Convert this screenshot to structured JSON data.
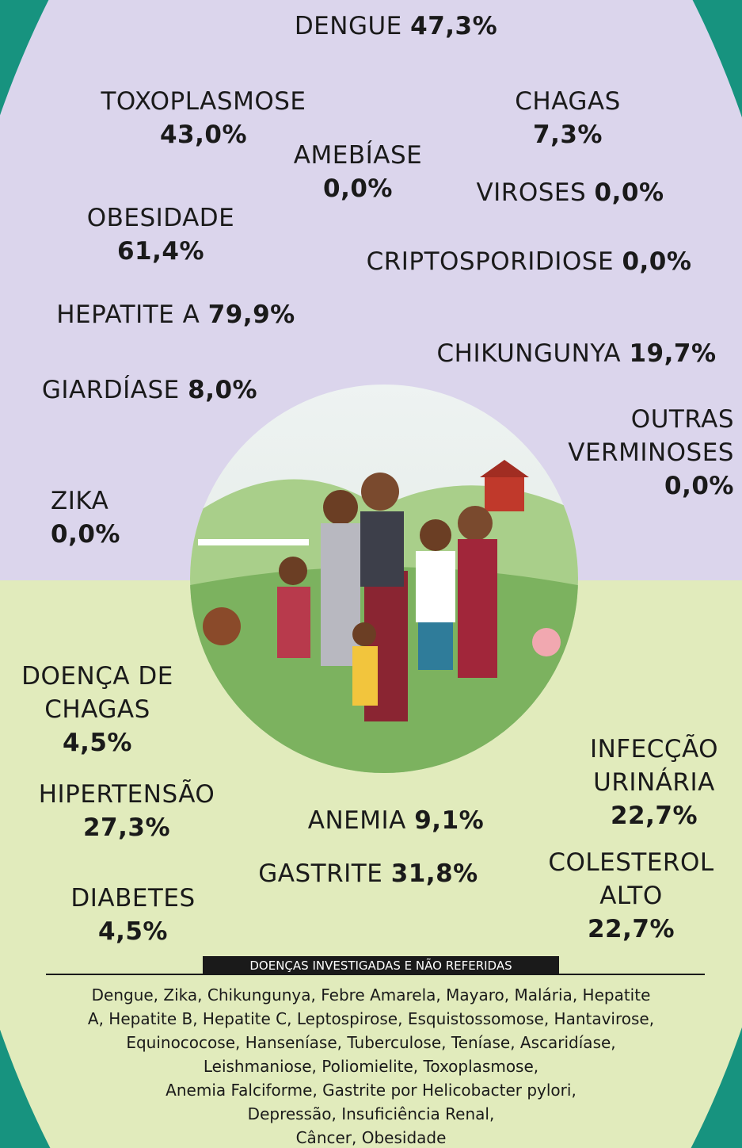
{
  "diseases": [
    {
      "name": "DENGUE",
      "value": "47,3%"
    },
    {
      "name": "TOXOPLASMOSE",
      "value": "43,0%"
    },
    {
      "name": "CHAGAS",
      "value": "7,3%"
    },
    {
      "name": "AMEBÍASE",
      "value": "0,0%"
    },
    {
      "name": "VIROSES",
      "value": "0,0%"
    },
    {
      "name": "OBESIDADE",
      "value": "61,4%"
    },
    {
      "name": "CRIPTOSPORIDIOSE",
      "value": "0,0%"
    },
    {
      "name": "HEPATITE A",
      "value": "79,9%"
    },
    {
      "name": "CHIKUNGUNYA",
      "value": "19,7%"
    },
    {
      "name": "GIARDÍASE",
      "value": "8,0%"
    },
    {
      "name": "OUTRAS VERMINOSES",
      "value": "0,0%"
    },
    {
      "name": "ZIKA",
      "value": "0,0%"
    },
    {
      "name": "DOENÇA DE CHAGAS",
      "value": "4,5%"
    },
    {
      "name": "INFECÇÃO URINÁRIA",
      "value": "22,7%"
    },
    {
      "name": "HIPERTENSÃO",
      "value": "27,3%"
    },
    {
      "name": "ANEMIA",
      "value": "9,1%"
    },
    {
      "name": "GASTRITE",
      "value": "31,8%"
    },
    {
      "name": "COLESTEROL ALTO",
      "value": "22,7%"
    },
    {
      "name": "DIABETES",
      "value": "4,5%"
    }
  ],
  "footer": {
    "heading": "DOENÇAS INVESTIGADAS E NÃO REFERIDAS",
    "lines": [
      "Dengue, Zika, Chikungunya, Febre Amarela, Mayaro, Malária, Hepatite",
      "A, Hepatite B, Hepatite C, Leptospirose, Esquistossomose, Hantavirose,",
      "Equinococose, Hanseníase, Tuberculose, Teníase, Ascaridíase,",
      "Leishmaniose, Poliomielite, Toxoplasmose,",
      "Anemia Falciforme, Gastrite por Helicobacter pylori,",
      "Depressão, Insuficiência Renal,",
      "Câncer, Obesidade"
    ]
  }
}
